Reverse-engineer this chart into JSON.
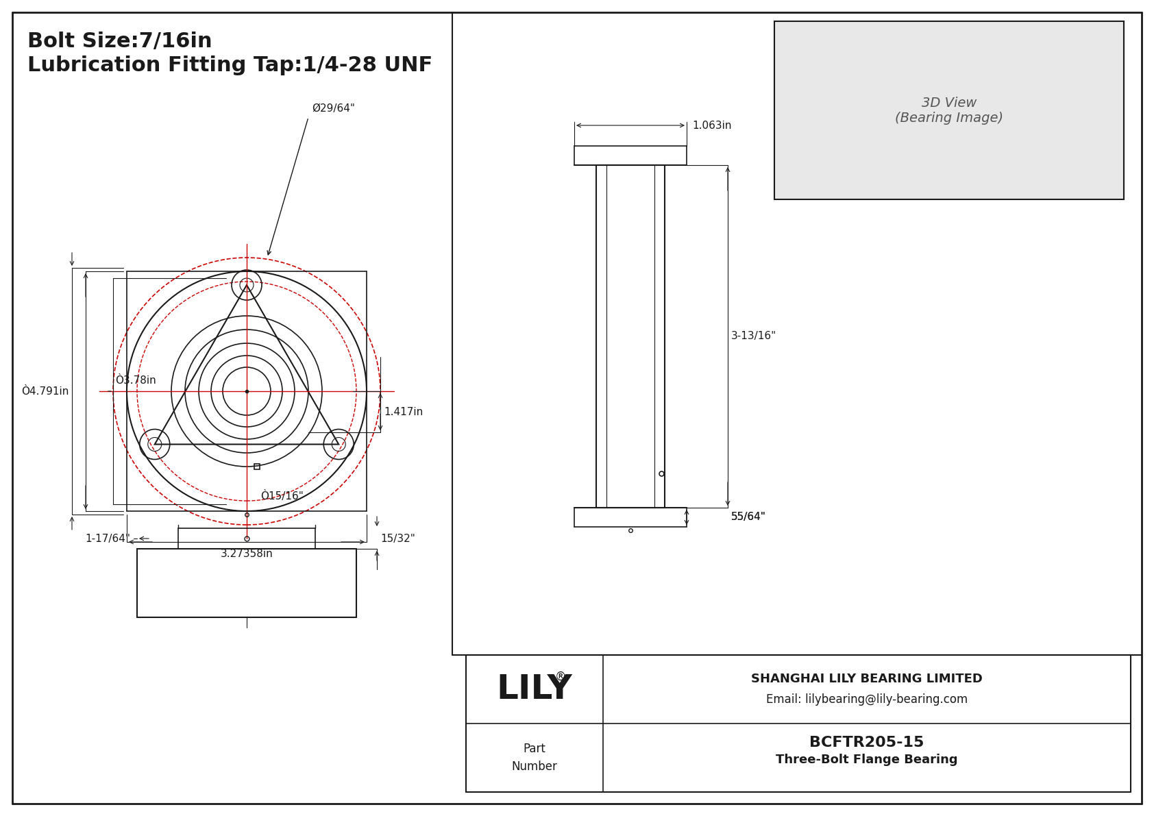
{
  "bg_color": "#ffffff",
  "border_color": "#000000",
  "line_color": "#1a1a1a",
  "red_color": "#cc0000",
  "dim_color": "#1a1a1a",
  "title_line1": "Bolt Size:7/16in",
  "title_line2": "Lubrication Fitting Tap:1/4-28 UNF",
  "company": "SHANGHAI LILY BEARING LIMITED",
  "email": "Email: lilybearing@lily-bearing.com",
  "part_label": "Part\nNumber",
  "part_number": "BCFTR205-15",
  "part_desc": "Three-Bolt Flange Bearing",
  "logo": "LILY",
  "logo_reg": "®",
  "dims": {
    "d1": "Ø29/64\"",
    "d2": "Ò4.791in",
    "d3": "Ò3.78in",
    "d4": "Ò15/16\"",
    "bolt_circle": "1.417in",
    "width": "3.27358in",
    "side_top": "1.063in",
    "side_height": "3-13/16\"",
    "side_bot": "55/64\"",
    "front_left": "1-17/64\"",
    "front_right": "15/32\""
  }
}
